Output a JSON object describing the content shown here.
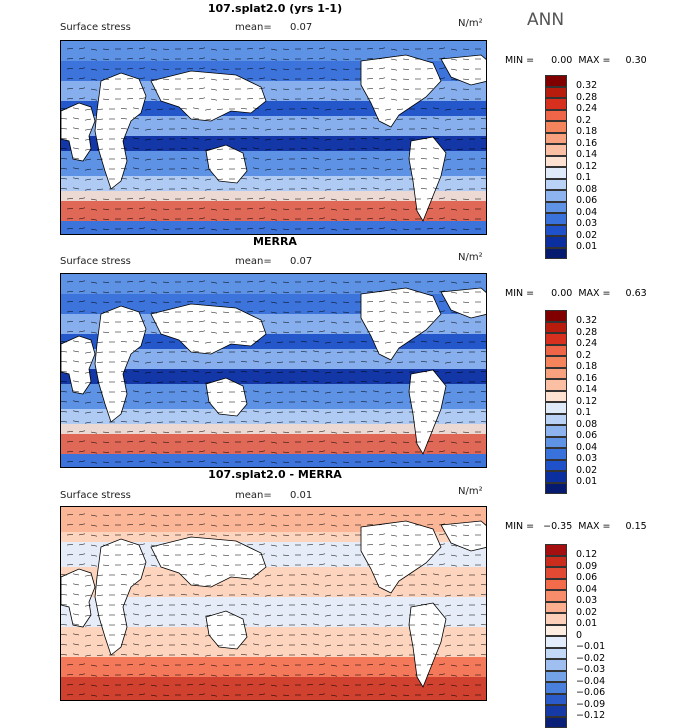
{
  "season": "ANN",
  "colors": {
    "ocean_base": "#4f86e0",
    "land": "#ffffff",
    "coast": "#000000"
  },
  "panels": [
    {
      "title": "107.splat2.0 (yrs 1-1)",
      "variable": "Surface stress",
      "mean_label": "mean=",
      "mean": "0.07",
      "units": "N/m²",
      "min_label": "MIN =",
      "min": "0.00",
      "max_label": "MAX =",
      "max": "0.30",
      "colorbar": {
        "labels": [
          "0.32",
          "0.28",
          "0.24",
          "0.2",
          "0.18",
          "0.16",
          "0.14",
          "0.12",
          "0.1",
          "0.08",
          "0.06",
          "0.04",
          "0.03",
          "0.02",
          "0.01"
        ],
        "colors": [
          "#800000",
          "#b71c0c",
          "#d7301f",
          "#ef6548",
          "#f4845c",
          "#f8a17e",
          "#fbc0a4",
          "#fde2d2",
          "#e0ebfa",
          "#b9d2f5",
          "#8db4ee",
          "#5f93e6",
          "#3a72dc",
          "#1f52c8",
          "#0c2fa0",
          "#061a70"
        ]
      }
    },
    {
      "title": "MERRA",
      "variable": "Surface stress",
      "mean_label": "mean=",
      "mean": "0.07",
      "units": "N/m²",
      "min_label": "MIN =",
      "min": "0.00",
      "max_label": "MAX =",
      "max": "0.63",
      "colorbar": {
        "labels": [
          "0.32",
          "0.28",
          "0.24",
          "0.2",
          "0.18",
          "0.16",
          "0.14",
          "0.12",
          "0.1",
          "0.08",
          "0.06",
          "0.04",
          "0.03",
          "0.02",
          "0.01"
        ],
        "colors": [
          "#800000",
          "#b71c0c",
          "#d7301f",
          "#ef6548",
          "#f4845c",
          "#f8a17e",
          "#fbc0a4",
          "#fde2d2",
          "#e0ebfa",
          "#b9d2f5",
          "#8db4ee",
          "#5f93e6",
          "#3a72dc",
          "#1f52c8",
          "#0c2fa0",
          "#061a70"
        ]
      }
    },
    {
      "title": "107.splat2.0 - MERRA",
      "variable": "Surface stress",
      "mean_label": "mean=",
      "mean": "0.01",
      "units": "N/m²",
      "min_label": "MIN =",
      "min": "−0.35",
      "max_label": "MAX =",
      "max": "0.15",
      "colorbar": {
        "labels": [
          "0.12",
          "0.09",
          "0.06",
          "0.04",
          "0.03",
          "0.02",
          "0.01",
          "0",
          "−0.01",
          "−0.02",
          "−0.03",
          "−0.04",
          "−0.06",
          "−0.09",
          "−0.12"
        ],
        "colors": [
          "#a50f0f",
          "#cb2d1c",
          "#e34a33",
          "#f26b4b",
          "#f78d6a",
          "#fbaf8f",
          "#fdd0b9",
          "#feeee2",
          "#e3ecfb",
          "#c3d7f6",
          "#9ebff0",
          "#74a2e8",
          "#4a80dd",
          "#2a5bc8",
          "#153aa6",
          "#0a1f78"
        ]
      }
    }
  ]
}
